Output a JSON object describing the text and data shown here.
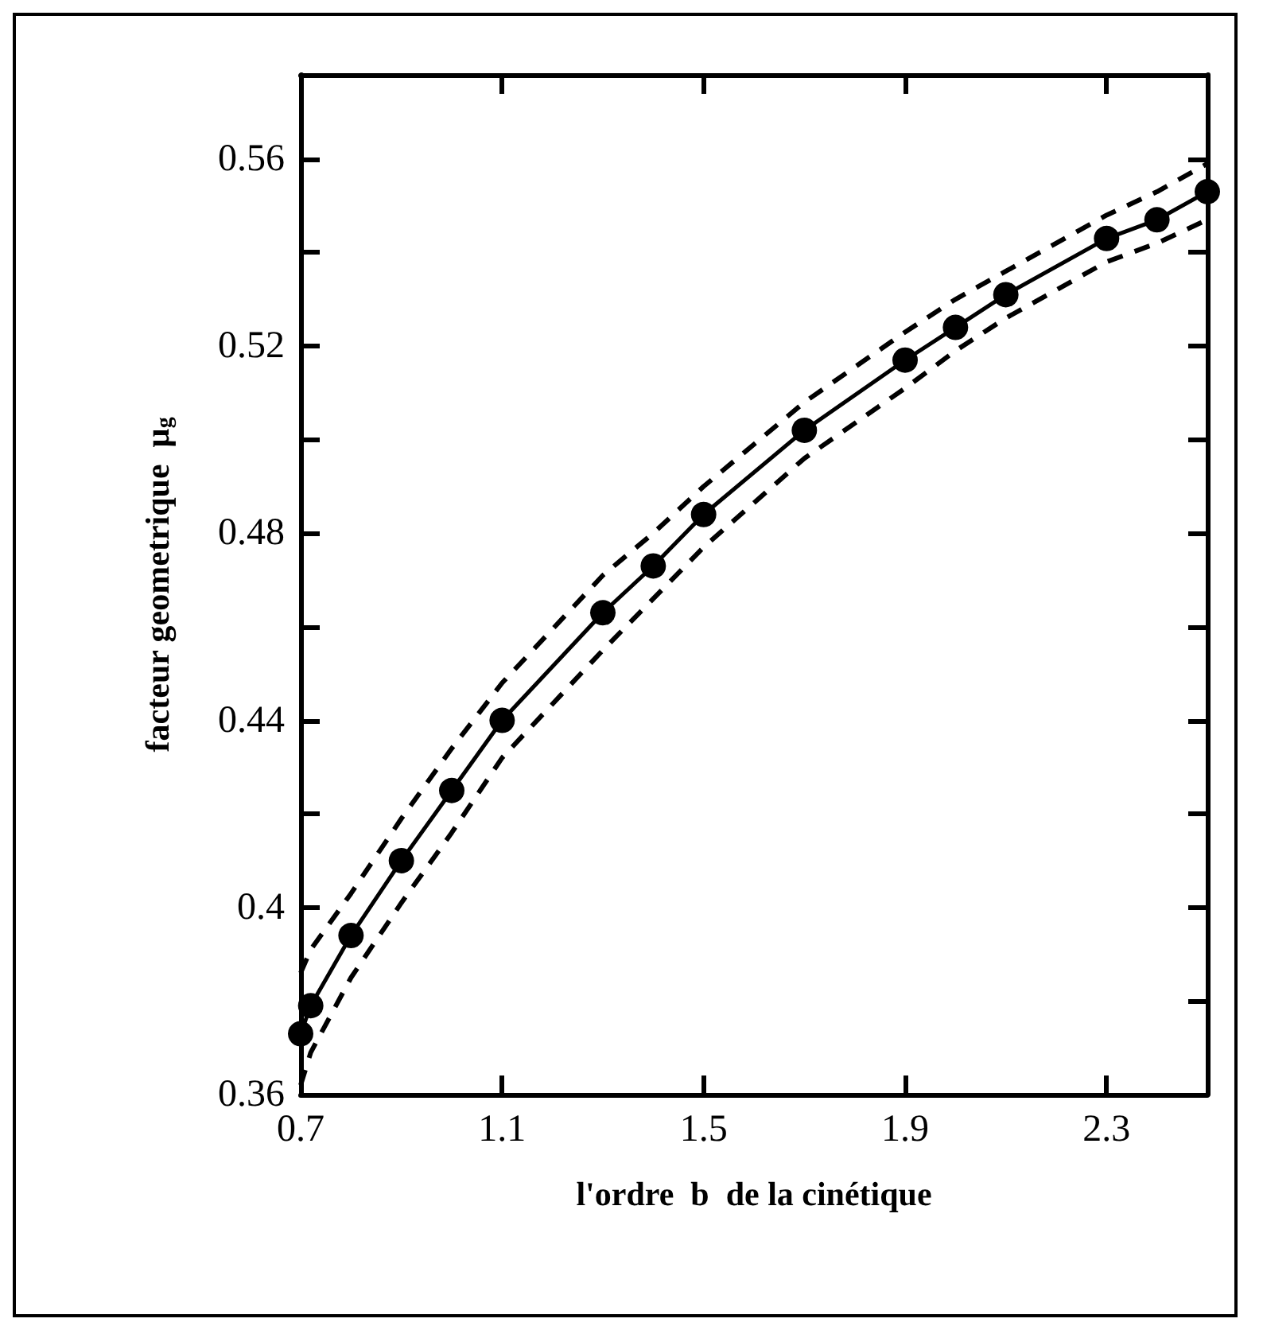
{
  "chart_data": {
    "type": "line",
    "xlabel": "l'ordre  b  de la cinétique",
    "ylabel": "facteur geometrique  μ$_{g}$",
    "series": [
      {
        "color": "#000000",
        "x": [
          0.7,
          0.72,
          0.8,
          0.9,
          1.0,
          1.1,
          1.3,
          1.4,
          1.5,
          1.7,
          1.9,
          2.0,
          2.1,
          2.3,
          2.4,
          2.5
        ],
        "values": [
          0.373,
          0.379,
          0.394,
          0.41,
          0.425,
          0.44,
          0.463,
          0.473,
          0.484,
          0.502,
          0.517,
          0.524,
          0.531,
          0.543,
          0.547,
          0.553
        ]
      },
      {
        "color": "#000000",
        "line_style": "dashed",
        "marker": "none",
        "x": [
          0.7,
          0.72,
          0.8,
          0.9,
          1.0,
          1.1,
          1.3,
          1.4,
          1.5,
          1.7,
          1.9,
          2.0,
          2.1,
          2.3,
          2.4,
          2.5
        ],
        "values": [
          0.362,
          0.369,
          0.385,
          0.401,
          0.416,
          0.432,
          0.455,
          0.466,
          0.477,
          0.496,
          0.511,
          0.519,
          0.526,
          0.538,
          0.542,
          0.547
        ]
      },
      {
        "color": "#000000",
        "line_style": "dashed",
        "marker": "none",
        "x": [
          0.7,
          0.72,
          0.8,
          0.9,
          1.0,
          1.1,
          1.3,
          1.4,
          1.5,
          1.7,
          1.9,
          2.0,
          2.1,
          2.3,
          2.4,
          2.5
        ],
        "values": [
          0.386,
          0.391,
          0.403,
          0.419,
          0.434,
          0.448,
          0.471,
          0.48,
          0.49,
          0.508,
          0.523,
          0.53,
          0.536,
          0.548,
          0.553,
          0.559
        ]
      }
    ],
    "xlim": [
      0.7,
      2.5
    ],
    "xticks": [
      0.7,
      1.1,
      1.5,
      1.9,
      2.3
    ],
    "ylim": [
      0.36,
      0.578
    ],
    "yticks": [
      0.36,
      {
        "value": 0.38,
        "label": null
      },
      0.4,
      {
        "value": 0.42,
        "label": null
      },
      0.44,
      {
        "value": 0.46,
        "label": null
      },
      0.48,
      {
        "value": 0.5,
        "label": null
      },
      0.52,
      {
        "value": 0.54,
        "label": null
      },
      0.56
    ],
    "grid": false,
    "marker": "circle",
    "line_style": "solid"
  }
}
